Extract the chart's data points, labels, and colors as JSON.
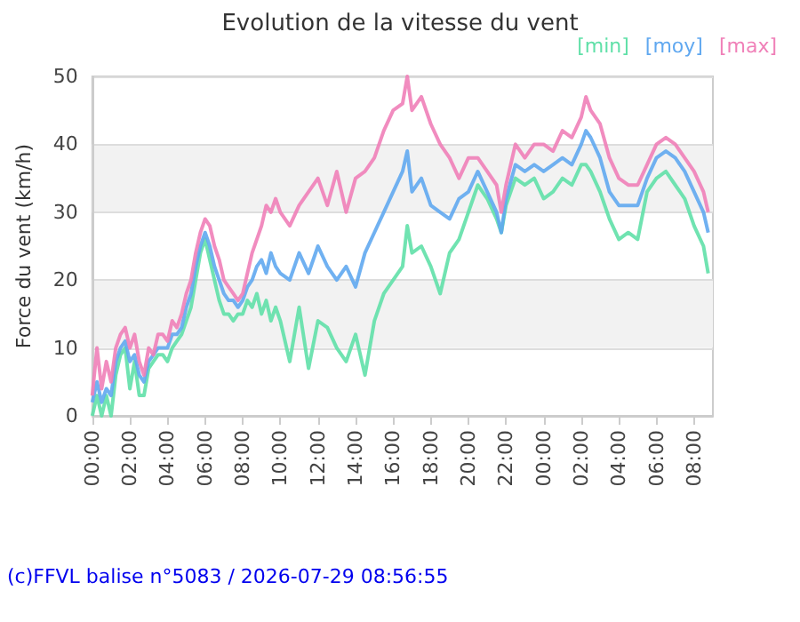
{
  "chart_data": {
    "type": "line",
    "title": "Evolution de la vitesse du vent",
    "ylabel": "Force du vent (km/h)",
    "x": [
      "2026-07-28T00:00",
      "2026-07-28T00:15",
      "2026-07-28T00:30",
      "2026-07-28T00:45",
      "2026-07-28T01:00",
      "2026-07-28T01:15",
      "2026-07-28T01:30",
      "2026-07-28T01:45",
      "2026-07-28T02:00",
      "2026-07-28T02:15",
      "2026-07-28T02:30",
      "2026-07-28T02:45",
      "2026-07-28T03:00",
      "2026-07-28T03:15",
      "2026-07-28T03:30",
      "2026-07-28T03:45",
      "2026-07-28T04:00",
      "2026-07-28T04:15",
      "2026-07-28T04:30",
      "2026-07-28T04:45",
      "2026-07-28T05:00",
      "2026-07-28T05:15",
      "2026-07-28T05:30",
      "2026-07-28T05:45",
      "2026-07-28T06:00",
      "2026-07-28T06:15",
      "2026-07-28T06:30",
      "2026-07-28T06:45",
      "2026-07-28T07:00",
      "2026-07-28T07:15",
      "2026-07-28T07:30",
      "2026-07-28T07:45",
      "2026-07-28T08:00",
      "2026-07-28T08:15",
      "2026-07-28T08:30",
      "2026-07-28T08:45",
      "2026-07-28T09:00",
      "2026-07-28T09:15",
      "2026-07-28T09:30",
      "2026-07-28T09:45",
      "2026-07-28T10:00",
      "2026-07-28T10:30",
      "2026-07-28T11:00",
      "2026-07-28T11:30",
      "2026-07-28T12:00",
      "2026-07-28T12:30",
      "2026-07-28T13:00",
      "2026-07-28T13:30",
      "2026-07-28T14:00",
      "2026-07-28T14:30",
      "2026-07-28T15:00",
      "2026-07-28T15:30",
      "2026-07-28T16:00",
      "2026-07-28T16:30",
      "2026-07-28T16:45",
      "2026-07-28T17:00",
      "2026-07-28T17:30",
      "2026-07-28T18:00",
      "2026-07-28T18:30",
      "2026-07-28T19:00",
      "2026-07-28T19:30",
      "2026-07-28T20:00",
      "2026-07-28T20:30",
      "2026-07-28T21:00",
      "2026-07-28T21:30",
      "2026-07-28T21:45",
      "2026-07-28T22:00",
      "2026-07-28T22:30",
      "2026-07-28T23:00",
      "2026-07-28T23:30",
      "2026-07-29T00:00",
      "2026-07-29T00:30",
      "2026-07-29T01:00",
      "2026-07-29T01:30",
      "2026-07-29T02:00",
      "2026-07-29T02:15",
      "2026-07-29T02:30",
      "2026-07-29T03:00",
      "2026-07-29T03:30",
      "2026-07-29T04:00",
      "2026-07-29T04:30",
      "2026-07-29T05:00",
      "2026-07-29T05:30",
      "2026-07-29T06:00",
      "2026-07-29T06:30",
      "2026-07-29T07:00",
      "2026-07-29T07:30",
      "2026-07-29T08:00",
      "2026-07-29T08:30",
      "2026-07-29T08:45"
    ],
    "series": [
      {
        "name": "[min]",
        "color": "#60e0a8",
        "values": [
          0,
          3,
          0,
          3,
          0,
          6,
          9,
          10,
          4,
          8,
          3,
          3,
          7,
          8,
          9,
          9,
          8,
          10,
          11,
          12,
          14,
          16,
          20,
          24,
          26,
          23,
          20,
          17,
          15,
          15,
          14,
          15,
          15,
          17,
          16,
          18,
          15,
          17,
          14,
          16,
          14,
          8,
          16,
          7,
          14,
          13,
          10,
          8,
          12,
          6,
          14,
          18,
          20,
          22,
          28,
          24,
          25,
          22,
          18,
          24,
          26,
          30,
          34,
          32,
          29,
          27,
          31,
          35,
          34,
          35,
          32,
          33,
          35,
          34,
          37,
          37,
          36,
          33,
          29,
          26,
          27,
          26,
          33,
          35,
          36,
          34,
          32,
          28,
          25,
          21
        ]
      },
      {
        "name": "[moy]",
        "color": "#60a8f0",
        "values": [
          2,
          5,
          2,
          4,
          3,
          8,
          10,
          11,
          8,
          9,
          6,
          5,
          8,
          9,
          10,
          10,
          10,
          12,
          12,
          13,
          16,
          18,
          22,
          25,
          27,
          25,
          22,
          20,
          18,
          17,
          17,
          16,
          17,
          19,
          20,
          22,
          23,
          21,
          24,
          22,
          21,
          20,
          24,
          21,
          25,
          22,
          20,
          22,
          19,
          24,
          27,
          30,
          33,
          36,
          39,
          33,
          35,
          31,
          30,
          29,
          32,
          33,
          36,
          33,
          30,
          27,
          32,
          37,
          36,
          37,
          36,
          37,
          38,
          37,
          40,
          42,
          41,
          38,
          33,
          31,
          31,
          31,
          35,
          38,
          39,
          38,
          36,
          33,
          30,
          27
        ]
      },
      {
        "name": "[max]",
        "color": "#f080b8",
        "values": [
          3,
          10,
          4,
          8,
          5,
          10,
          12,
          13,
          10,
          12,
          8,
          6,
          10,
          9,
          12,
          12,
          11,
          14,
          13,
          15,
          18,
          20,
          24,
          27,
          29,
          28,
          25,
          23,
          20,
          19,
          18,
          17,
          18,
          21,
          24,
          26,
          28,
          31,
          30,
          32,
          30,
          28,
          31,
          33,
          35,
          31,
          36,
          30,
          35,
          36,
          38,
          42,
          45,
          46,
          50,
          45,
          47,
          43,
          40,
          38,
          35,
          38,
          38,
          36,
          34,
          30,
          34,
          40,
          38,
          40,
          40,
          39,
          42,
          41,
          44,
          47,
          45,
          43,
          38,
          35,
          34,
          34,
          37,
          40,
          41,
          40,
          38,
          36,
          33,
          30
        ]
      }
    ],
    "xlim": [
      "2026-07-28T00:00",
      "2026-07-29T09:00"
    ],
    "xticks": [
      {
        "value": "2026-07-28T00:00",
        "label": "00:00"
      },
      {
        "value": "2026-07-28T02:00",
        "label": "02:00"
      },
      {
        "value": "2026-07-28T04:00",
        "label": "04:00"
      },
      {
        "value": "2026-07-28T06:00",
        "label": "06:00"
      },
      {
        "value": "2026-07-28T08:00",
        "label": "08:00"
      },
      {
        "value": "2026-07-28T10:00",
        "label": "10:00"
      },
      {
        "value": "2026-07-28T12:00",
        "label": "12:00"
      },
      {
        "value": "2026-07-28T14:00",
        "label": "14:00"
      },
      {
        "value": "2026-07-28T16:00",
        "label": "16:00"
      },
      {
        "value": "2026-07-28T18:00",
        "label": "18:00"
      },
      {
        "value": "2026-07-28T20:00",
        "label": "20:00"
      },
      {
        "value": "2026-07-28T22:00",
        "label": "22:00"
      },
      {
        "value": "2026-07-29T00:00",
        "label": "00:00"
      },
      {
        "value": "2026-07-29T02:00",
        "label": "02:00"
      },
      {
        "value": "2026-07-29T04:00",
        "label": "04:00"
      },
      {
        "value": "2026-07-29T06:00",
        "label": "06:00"
      },
      {
        "value": "2026-07-29T08:00",
        "label": "08:00"
      }
    ],
    "ylim": [
      0,
      50
    ],
    "yticks": [
      0,
      10,
      20,
      30,
      40,
      50
    ],
    "grid": "y",
    "legend": "top right",
    "marker": "none",
    "line_style": "solid",
    "annotations": [
      "(c)FFVL balise n°5083 / 2026-07-29 08:56:55"
    ]
  }
}
